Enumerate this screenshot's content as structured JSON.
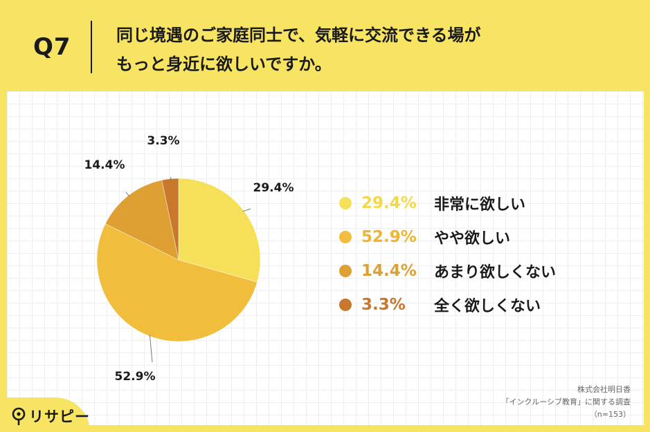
{
  "header": {
    "q_label": "Q7",
    "question_line1": "同じ境遇のご家庭同士で、気軽に交流できる場が",
    "question_line2": "もっと身近に欲しいですか。"
  },
  "legend": [
    {
      "pct": "29.4%",
      "label": "非常に欲しい"
    },
    {
      "pct": "52.9%",
      "label": "やや欲しい"
    },
    {
      "pct": "14.4%",
      "label": "あまり欲しくない"
    },
    {
      "pct": "3.3%",
      "label": "全く欲しくない"
    }
  ],
  "source": {
    "line1": "株式会社明日香",
    "line2": "「インクルーシブ教育」に関する調査",
    "line3": "（n=153）"
  },
  "brand": {
    "logo_text": "リサピー"
  },
  "colors": {
    "background": "#F7E463",
    "slice1": "#F6E05A",
    "slice2": "#F0BD3C",
    "slice3": "#DFA033",
    "slice4": "#C9772A"
  },
  "chart_data": {
    "type": "pie",
    "categories": [
      "非常に欲しい",
      "やや欲しい",
      "あまり欲しくない",
      "全く欲しくない"
    ],
    "values": [
      29.4,
      52.9,
      14.4,
      3.3
    ],
    "data_labels": [
      "29.4%",
      "52.9%",
      "14.4%",
      "3.3%"
    ],
    "start": "12 o'clock",
    "direction": "clockwise"
  }
}
